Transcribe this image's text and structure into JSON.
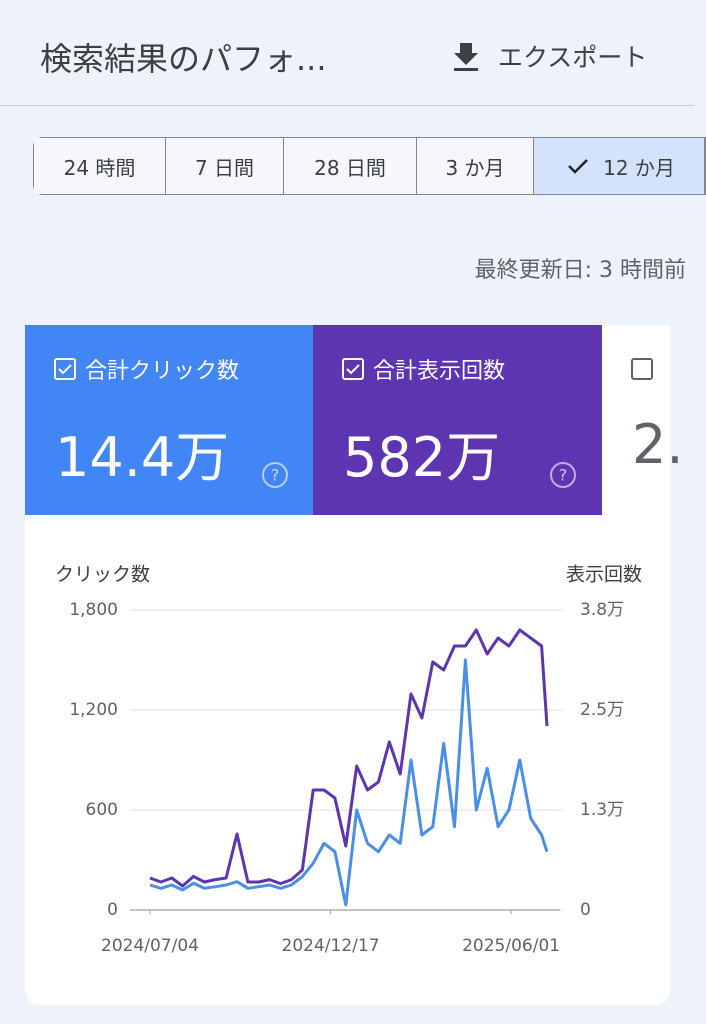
{
  "header": {
    "title": "検索結果のパフォ...",
    "export": "エクスポート"
  },
  "filters": {
    "options": [
      "24 時間",
      "7 日間",
      "28 日間",
      "3 か月",
      "12 か月"
    ],
    "selected": 4
  },
  "last_updated": "最終更新日: 3 時間前",
  "cards": [
    {
      "label": "合計クリック数",
      "value": "14.4万",
      "color": "#4285f4",
      "checked": true
    },
    {
      "label": "合計表示回数",
      "value": "582万",
      "color": "#5e35b1",
      "checked": true
    },
    {
      "value": "2.",
      "checked": false
    }
  ],
  "chart_data": {
    "type": "line",
    "y_label": "クリック数",
    "y2_label": "表示回数",
    "x": [
      "2024/07/04",
      "2024/07/14",
      "2024/07/24",
      "2024/08/03",
      "2024/08/13",
      "2024/08/23",
      "2024/09/02",
      "2024/09/12",
      "2024/09/22",
      "2024/10/02",
      "2024/10/12",
      "2024/10/22",
      "2024/11/01",
      "2024/11/11",
      "2024/11/21",
      "2024/12/01",
      "2024/12/11",
      "2024/12/21",
      "2024/12/31",
      "2025/01/10",
      "2025/01/20",
      "2025/01/30",
      "2025/02/09",
      "2025/02/19",
      "2025/03/01",
      "2025/03/11",
      "2025/03/21",
      "2025/03/31",
      "2025/04/10",
      "2025/04/20",
      "2025/04/30",
      "2025/05/10",
      "2025/05/20",
      "2025/05/30",
      "2025/06/09",
      "2025/06/19",
      "2025/06/29",
      "2025/07/04"
    ],
    "xlim": [
      "2024/07/04",
      "2025/07/04"
    ],
    "xticks": [
      "2024/07/04",
      "2024/12/17",
      "2025/06/01"
    ],
    "ylim": [
      0,
      1800
    ],
    "yticks": [
      0,
      600,
      {
        "value": 1200,
        "label": "1,200"
      },
      {
        "value": 1800,
        "label": "1,800"
      }
    ],
    "y2lim": [
      0,
      37500
    ],
    "y2ticks": [
      0,
      {
        "value": 12500,
        "label": "1.3万"
      },
      {
        "value": 25000,
        "label": "2.5万"
      },
      {
        "value": 37500,
        "label": "3.8万"
      }
    ],
    "grid": true,
    "series": [
      {
        "name": "表示回数",
        "axis": "y2",
        "color": "#5e35b1",
        "values": [
          4000,
          3500,
          4000,
          3000,
          4200,
          3500,
          3800,
          4000,
          9500,
          3500,
          3500,
          3800,
          3300,
          3800,
          5000,
          15000,
          15000,
          14000,
          8000,
          18000,
          15000,
          16000,
          21000,
          17000,
          27000,
          24000,
          31000,
          30000,
          33000,
          33000,
          35000,
          32000,
          34000,
          33000,
          35000,
          34000,
          33000,
          23000
        ]
      },
      {
        "name": "クリック数",
        "color": "#4a8fe7",
        "values": [
          150,
          130,
          150,
          120,
          160,
          130,
          140,
          150,
          170,
          130,
          140,
          150,
          130,
          150,
          200,
          280,
          400,
          350,
          30,
          600,
          400,
          350,
          450,
          400,
          900,
          450,
          500,
          1000,
          500,
          1500,
          600,
          850,
          500,
          600,
          900,
          550,
          450,
          350
        ]
      }
    ]
  }
}
